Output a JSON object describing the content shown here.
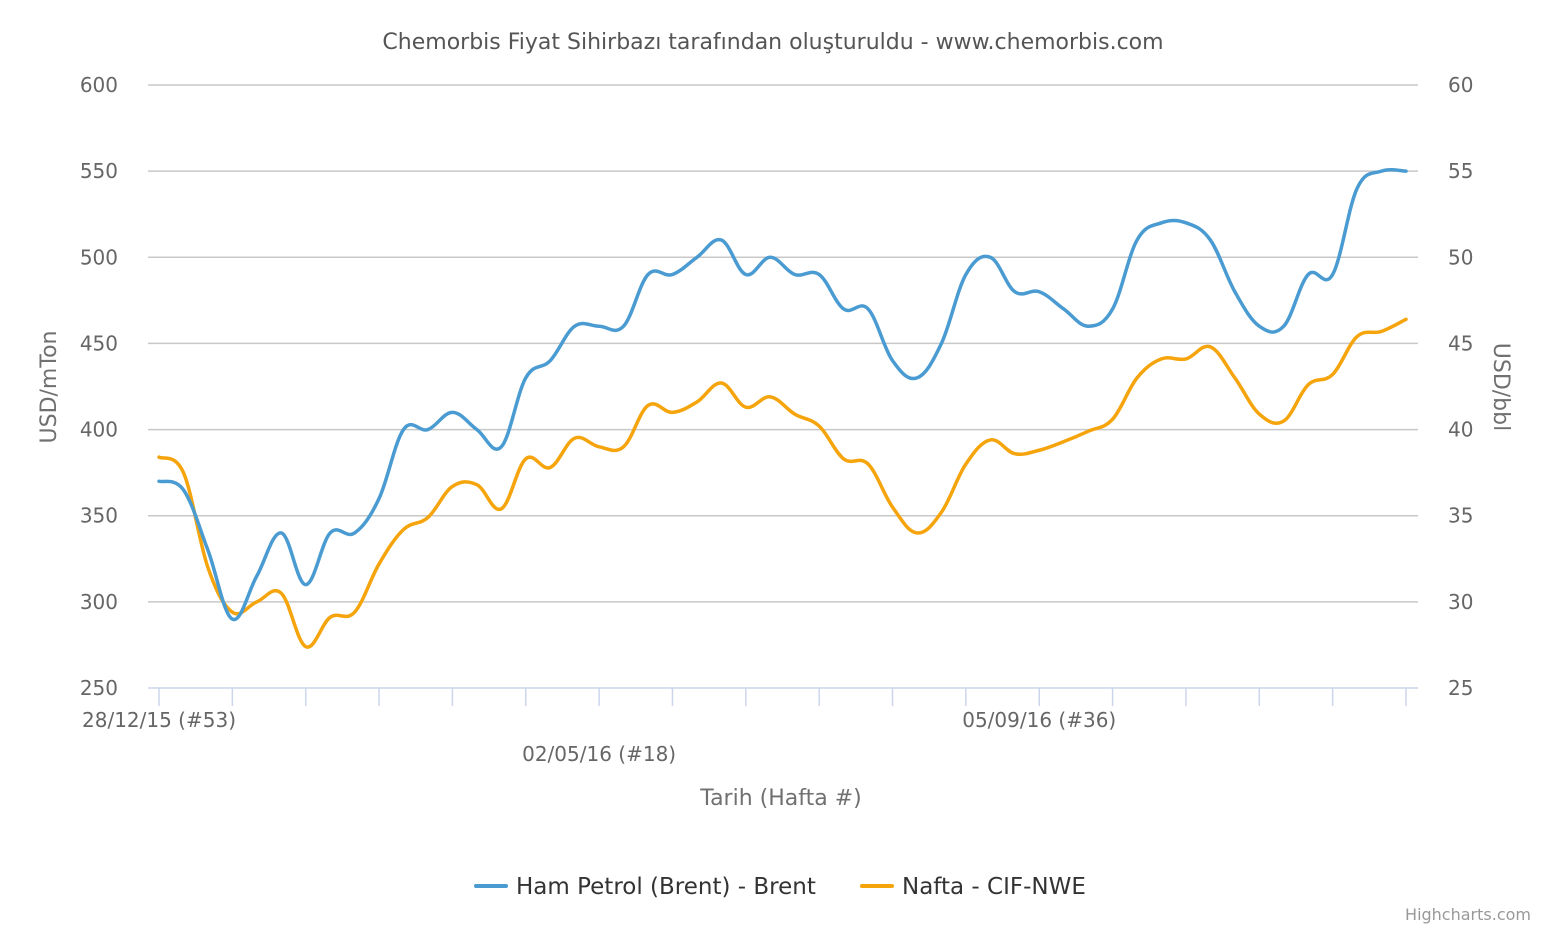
{
  "chart_data": {
    "type": "line",
    "title": "Chemorbis Fiyat Sihirbazı tarafından oluşturuldu - www.chemorbis.com",
    "xlabel": "Tarih (Hafta #)",
    "ylabel_left": "USD/mTon",
    "ylabel_right": "USD/bbl",
    "ylim_left": [
      250,
      600
    ],
    "ylim_right": [
      25,
      60
    ],
    "yticks_left": [
      "250",
      "300",
      "350",
      "400",
      "450",
      "500",
      "550",
      "600"
    ],
    "yticks_right": [
      "25",
      "30",
      "35",
      "40",
      "45",
      "50",
      "55",
      "60"
    ],
    "x_tick_labels": [
      {
        "index": 0,
        "label": "28/12/15 (#53)",
        "row": 0
      },
      {
        "index": 18,
        "label": "02/05/16 (#18)",
        "row": 1
      },
      {
        "index": 36,
        "label": "05/09/16 (#36)",
        "row": 0
      }
    ],
    "x_tick_positions": [
      0,
      3,
      6,
      9,
      12,
      15,
      18,
      21,
      24,
      27,
      30,
      33,
      36,
      39,
      42,
      45,
      48,
      51
    ],
    "grid": true,
    "legend_position": "bottom-center",
    "credits": "Highcharts.com",
    "series": [
      {
        "name": "Ham Petrol (Brent) - Brent",
        "color": "#4a9bd1",
        "axis": "right",
        "values": [
          37,
          36.5,
          33,
          29,
          31.5,
          34,
          31,
          34,
          34,
          36,
          40,
          40,
          41,
          40,
          39,
          43,
          44,
          46,
          46,
          46,
          49,
          49,
          50,
          51,
          49,
          50,
          49,
          49,
          47,
          47,
          44,
          43,
          45,
          49,
          50,
          48,
          48,
          47,
          46,
          47,
          51,
          52,
          52,
          51,
          48,
          46,
          46,
          49,
          49,
          54,
          55,
          55
        ]
      },
      {
        "name": "Nafta - CIF-NWE",
        "color": "#f5a40c",
        "axis": "left",
        "values": [
          384,
          375,
          320,
          294,
          300,
          305,
          274,
          291,
          294,
          322,
          342,
          349,
          367,
          368,
          354,
          383,
          378,
          395,
          390,
          390,
          414,
          410,
          416,
          427,
          413,
          419,
          409,
          402,
          383,
          380,
          355,
          340,
          352,
          380,
          394,
          386,
          388,
          393,
          399,
          406,
          430,
          441,
          441,
          448,
          430,
          409,
          405,
          426,
          432,
          454,
          457,
          464
        ]
      }
    ]
  }
}
